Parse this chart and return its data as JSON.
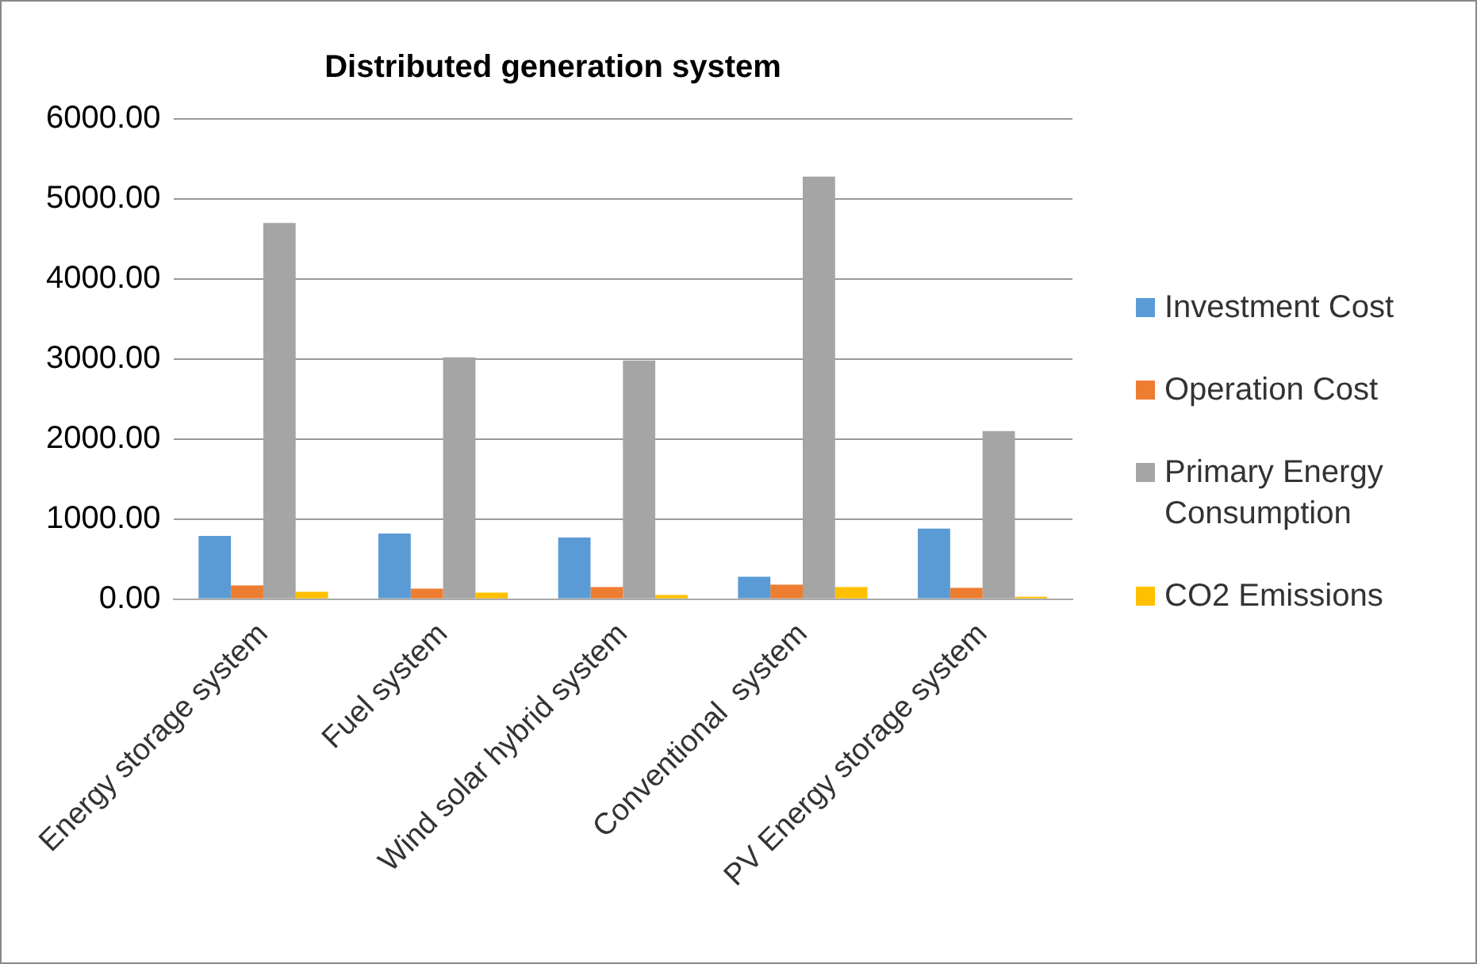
{
  "chart_data": {
    "type": "bar",
    "title": "Distributed generation system",
    "categories": [
      "Energy storage system",
      "Fuel system",
      "Wind solar hybrid system",
      "Conventional  system",
      "PV Energy storage system"
    ],
    "series": [
      {
        "name": "Investment Cost",
        "color": "#5b9bd5",
        "values": [
          790,
          820,
          770,
          280,
          880
        ]
      },
      {
        "name": "Operation Cost",
        "color": "#ed7d31",
        "values": [
          170,
          130,
          150,
          180,
          140
        ]
      },
      {
        "name": "Primary Energy Consumption",
        "color": "#a5a5a5",
        "values": [
          4700,
          3020,
          2980,
          5280,
          2100
        ]
      },
      {
        "name": "CO2 Emissions",
        "color": "#ffc000",
        "values": [
          90,
          80,
          50,
          150,
          30
        ]
      }
    ],
    "ylim": [
      0,
      6000
    ],
    "yticks": [
      {
        "value": 0,
        "label": "0.00"
      },
      {
        "value": 1000,
        "label": "1000.00"
      },
      {
        "value": 2000,
        "label": "2000.00"
      },
      {
        "value": 3000,
        "label": "3000.00"
      },
      {
        "value": 4000,
        "label": "4000.00"
      },
      {
        "value": 5000,
        "label": "5000.00"
      },
      {
        "value": 6000,
        "label": "6000.00"
      }
    ],
    "grid": "y",
    "legend": "right"
  }
}
